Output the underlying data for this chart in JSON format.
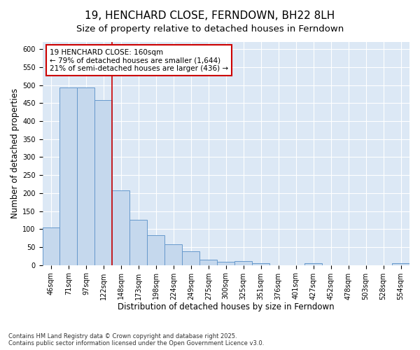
{
  "title": "19, HENCHARD CLOSE, FERNDOWN, BH22 8LH",
  "subtitle": "Size of property relative to detached houses in Ferndown",
  "xlabel": "Distribution of detached houses by size in Ferndown",
  "ylabel": "Number of detached properties",
  "categories": [
    "46sqm",
    "71sqm",
    "97sqm",
    "122sqm",
    "148sqm",
    "173sqm",
    "198sqm",
    "224sqm",
    "249sqm",
    "275sqm",
    "300sqm",
    "325sqm",
    "351sqm",
    "376sqm",
    "401sqm",
    "427sqm",
    "452sqm",
    "478sqm",
    "503sqm",
    "528sqm",
    "554sqm"
  ],
  "values": [
    105,
    493,
    493,
    459,
    207,
    125,
    83,
    57,
    38,
    14,
    9,
    11,
    5,
    0,
    0,
    6,
    0,
    0,
    0,
    0,
    5
  ],
  "bar_color": "#c5d8ed",
  "bar_edge_color": "#6699cc",
  "annotation_line_color": "#cc0000",
  "annotation_text_line1": "19 HENCHARD CLOSE: 160sqm",
  "annotation_text_line2": "← 79% of detached houses are smaller (1,644)",
  "annotation_text_line3": "21% of semi-detached houses are larger (436) →",
  "property_line_bar_index": 4,
  "ylim": [
    0,
    620
  ],
  "yticks": [
    0,
    50,
    100,
    150,
    200,
    250,
    300,
    350,
    400,
    450,
    500,
    550,
    600
  ],
  "background_color": "#ffffff",
  "plot_background": "#dce8f5",
  "grid_color": "#ffffff",
  "footer": "Contains HM Land Registry data © Crown copyright and database right 2025.\nContains public sector information licensed under the Open Government Licence v3.0.",
  "title_fontsize": 11,
  "subtitle_fontsize": 9.5,
  "axis_label_fontsize": 8.5,
  "tick_fontsize": 7,
  "annotation_fontsize": 7.5,
  "footer_fontsize": 6
}
